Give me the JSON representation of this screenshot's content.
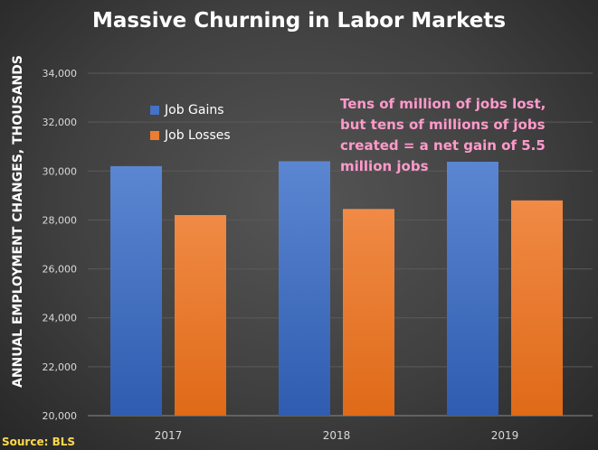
{
  "chart_data": {
    "type": "bar",
    "title": "Massive Churning in Labor Markets",
    "xlabel": "",
    "ylabel": "ANNUAL EMPLOYMENT CHANGES, THOUSANDS",
    "categories": [
      "2017",
      "2018",
      "2019"
    ],
    "series": [
      {
        "name": "Job Gains",
        "values": [
          30200,
          30400,
          30380
        ],
        "color": "#4472c4"
      },
      {
        "name": "Job Losses",
        "values": [
          28200,
          28450,
          28800
        ],
        "color": "#ed7d31"
      }
    ],
    "ylim": [
      20000,
      34000
    ],
    "yticks": [
      "20,000",
      "22,000",
      "24,000",
      "26,000",
      "28,000",
      "30,000",
      "32,000",
      "34,000"
    ],
    "grid": true,
    "legend_position": "top-left",
    "annotation": "Tens of million of jobs lost, but tens of millions of jobs created = a net gain of 5.5 million jobs",
    "annotation_color": "#ff9acb",
    "source": "Source: BLS"
  }
}
